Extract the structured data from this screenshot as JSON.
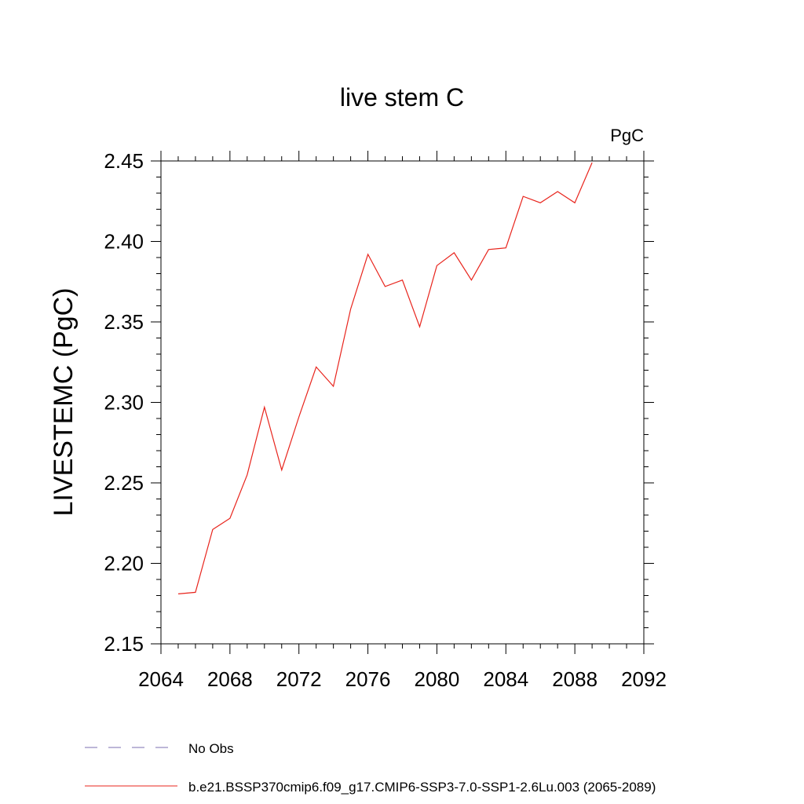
{
  "chart_data": {
    "type": "line",
    "title": "live stem C",
    "units_label": "PgC",
    "ylabel": "LIVESTEMC  (PgC)",
    "xlabel": "",
    "xlim": [
      2064,
      2092
    ],
    "ylim": [
      2.15,
      2.45
    ],
    "x_ticks": [
      2064,
      2068,
      2072,
      2076,
      2080,
      2084,
      2088,
      2092
    ],
    "x_tick_labels": [
      "2064",
      "2068",
      "2072",
      "2076",
      "2080",
      "2084",
      "2088",
      "2092"
    ],
    "y_ticks": [
      2.15,
      2.2,
      2.25,
      2.3,
      2.35,
      2.4,
      2.45
    ],
    "y_tick_labels": [
      "2.15",
      "2.20",
      "2.25",
      "2.30",
      "2.35",
      "2.40",
      "2.45"
    ],
    "grid": false,
    "legend_position": "bottom-left",
    "legend": [
      {
        "label": "No Obs",
        "color": "#7b6fb0",
        "dash": "dashed"
      },
      {
        "label": "b.e21.BSSP370cmip6.f09_g17.CMIP6-SSP3-7.0-SSP1-2.6Lu.003 (2065-2089)",
        "color": "#e8241c",
        "dash": "solid"
      }
    ],
    "series": [
      {
        "color": "#e8241c",
        "x": [
          2065,
          2066,
          2067,
          2068,
          2069,
          2070,
          2071,
          2072,
          2073,
          2074,
          2075,
          2076,
          2077,
          2078,
          2079,
          2080,
          2081,
          2082,
          2083,
          2084,
          2085,
          2086,
          2087,
          2088,
          2089
        ],
        "y": [
          2.181,
          2.182,
          2.221,
          2.228,
          2.255,
          2.297,
          2.258,
          2.291,
          2.322,
          2.31,
          2.358,
          2.392,
          2.372,
          2.376,
          2.347,
          2.385,
          2.393,
          2.376,
          2.395,
          2.396,
          2.428,
          2.424,
          2.431,
          2.424,
          2.449
        ]
      }
    ]
  }
}
